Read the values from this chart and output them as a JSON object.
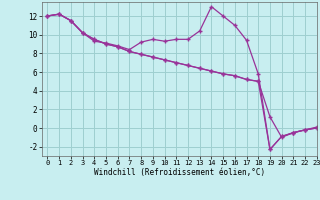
{
  "xlabel": "Windchill (Refroidissement éolien,°C)",
  "bg_color": "#c8eef0",
  "grid_color": "#9ecfcf",
  "line_color": "#993399",
  "xlim": [
    -0.5,
    23
  ],
  "ylim": [
    -3.0,
    13.5
  ],
  "yticks": [
    -2,
    0,
    2,
    4,
    6,
    8,
    10,
    12
  ],
  "xticks": [
    0,
    1,
    2,
    3,
    4,
    5,
    6,
    7,
    8,
    9,
    10,
    11,
    12,
    13,
    14,
    15,
    16,
    17,
    18,
    19,
    20,
    21,
    22,
    23
  ],
  "line1_x": [
    0,
    1,
    2,
    3,
    4,
    5,
    6,
    7,
    8,
    9,
    10,
    11,
    12,
    13,
    14,
    15,
    16,
    17,
    18,
    19,
    20,
    21,
    22,
    23
  ],
  "line1_y": [
    12,
    12.2,
    11.5,
    10.2,
    9.3,
    9.1,
    8.8,
    8.4,
    9.2,
    9.5,
    9.3,
    9.5,
    9.5,
    10.4,
    13.0,
    12.0,
    11.0,
    9.4,
    5.8,
    -2.3,
    -0.9,
    -0.5,
    -0.2,
    0.1
  ],
  "line2_x": [
    0,
    1,
    2,
    3,
    4,
    5,
    6,
    7,
    8,
    9,
    10,
    11,
    12,
    13,
    14,
    15,
    16,
    17,
    18,
    19,
    20,
    21,
    22,
    23
  ],
  "line2_y": [
    12,
    12.2,
    11.5,
    10.2,
    9.5,
    9.0,
    8.7,
    8.2,
    7.9,
    7.6,
    7.3,
    7.0,
    6.7,
    6.4,
    6.1,
    5.8,
    5.6,
    5.2,
    5.0,
    1.2,
    -1.0,
    -0.5,
    -0.2,
    0.0
  ],
  "line3_x": [
    0,
    1,
    2,
    3,
    4,
    5,
    6,
    7,
    8,
    9,
    10,
    11,
    12,
    13,
    14,
    15,
    16,
    17,
    18,
    19,
    20,
    21,
    22,
    23
  ],
  "line3_y": [
    12,
    12.2,
    11.5,
    10.2,
    9.5,
    9.0,
    8.7,
    8.2,
    7.9,
    7.6,
    7.3,
    7.0,
    6.7,
    6.4,
    6.1,
    5.8,
    5.6,
    5.2,
    5.0,
    -2.3,
    -0.9,
    -0.5,
    -0.2,
    0.0
  ],
  "marker": "+",
  "markersize": 3,
  "linewidth": 0.9,
  "tick_fontsize": 5.5,
  "xlabel_fontsize": 5.5
}
